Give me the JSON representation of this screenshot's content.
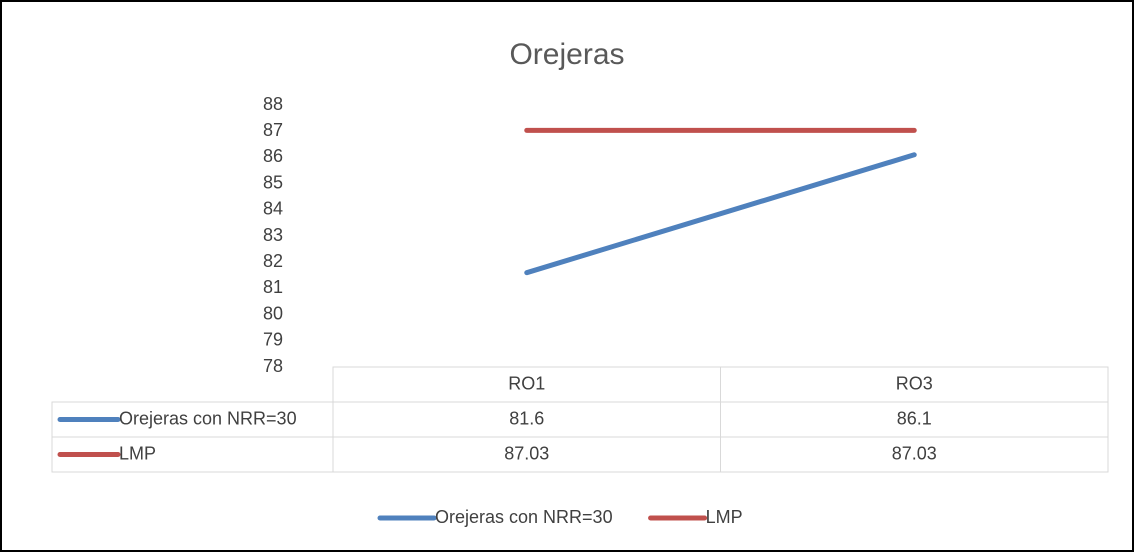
{
  "chart_data": {
    "type": "line",
    "title": "Orejeras",
    "categories": [
      "RO1",
      "RO3"
    ],
    "series": [
      {
        "name": "Orejeras con NRR=30",
        "color": "#4f81bd",
        "values": [
          81.6,
          86.1
        ]
      },
      {
        "name": "LMP",
        "color": "#c0504d",
        "values": [
          87.03,
          87.03
        ]
      }
    ],
    "ylim": [
      78,
      88
    ],
    "yticks": [
      78,
      79,
      80,
      81,
      82,
      83,
      84,
      85,
      86,
      87,
      88
    ],
    "grid": false,
    "legend": "bottom",
    "data_table": true
  }
}
